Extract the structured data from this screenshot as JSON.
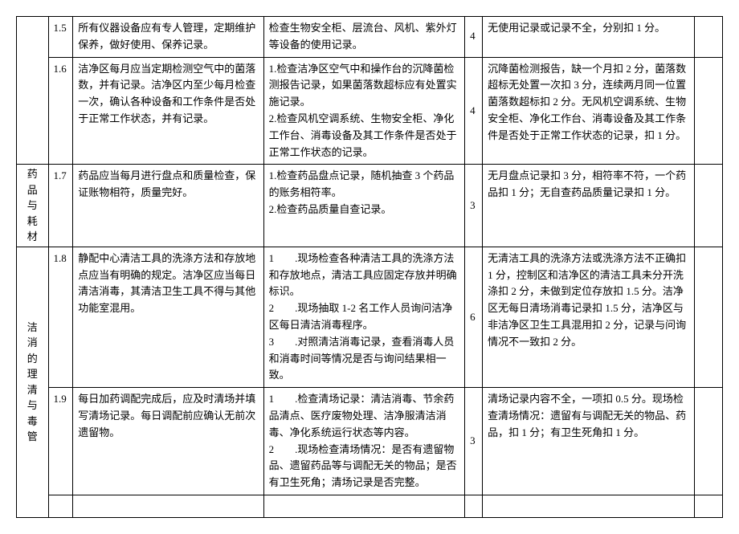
{
  "table": {
    "column_widths": {
      "category": "4.5%",
      "number": "3.5%",
      "requirement": "27%",
      "method": "28.5%",
      "score": "2.5%",
      "criteria": "30%",
      "extra": "4%"
    },
    "border_color": "#000000",
    "background_color": "#ffffff",
    "text_color": "#000000",
    "font_size": 13,
    "rows": [
      {
        "category": "",
        "number": "1.5",
        "requirement": "所有仪器设备应有专人管理，定期维护保养，做好使用、保养记录。",
        "method": "检查生物安全柜、层流台、风机、紫外灯等设备的使用记录。",
        "score": "4",
        "criteria": "无使用记录或记录不全，分别扣 1 分。"
      },
      {
        "category": "",
        "number": "1.6",
        "requirement": "洁净区每月应当定期检测空气中的菌落数，并有记录。洁净区内至少每月检查一次，确认各种设备和工作条件是否处于正常工作状态，并有记录。",
        "method": "1.检查洁净区空气中和操作台的沉降菌检测报告记录，如果菌落数超标应有处置实施记录。\n2.检查风机空调系统、生物安全柜、净化工作台、消毒设备及其工作条件是否处于正常工作状态的记录。",
        "score": "4",
        "criteria": "沉降菌检测报告，缺一个月扣 2 分，菌落数超标无处置一次扣 3 分，连续两月同一位置菌落数超标扣 2 分。无风机空调系统、生物安全柜、净化工作台、消毒设备及其工作条件是否处于正常工作状态的记录，扣 1 分。"
      },
      {
        "category": "药品与耗材",
        "number": "1.7",
        "requirement": "药品应当每月进行盘点和质量检查，保证账物相符，质量完好。",
        "method": "1.检查药品盘点记录，随机抽查 3 个药品的账务相符率。\n2.检查药品质量自查记录。",
        "score": "3",
        "criteria": "无月盘点记录扣 3 分，相符率不符，一个药品扣 1 分；无自查药品质量记录扣 1 分。"
      },
      {
        "category": "洁消的理清与毒管",
        "number": "1.8",
        "requirement": "静配中心清洁工具的洗涤方法和存放地点应当有明确的规定。洁净区应当每日清洁消毒，其清洁卫生工具不得与其他功能室混用。",
        "method": "1　　.现场检查各种清洁工具的洗涤方法和存放地点，清洁工具应固定存放并明确标识。\n2　　.现场抽取 1-2 名工作人员询问洁净区每日清洁消毒程序。\n3　　.对照清洁消毒记录，查看消毒人员和消毒时间等情况是否与询问结果相一致。",
        "score": "6",
        "criteria": "无清洁工具的洗涤方法或洗涤方法不正确扣 1 分，控制区和洁净区的清洁工具未分开洗涤扣 2 分，未做到定位存放扣 1.5 分。洁净区无每日清场消毒记录扣 1.5 分，洁净区与非洁净区卫生工具混用扣 2 分，记录与问询情况不一致扣 2 分。"
      },
      {
        "category": "",
        "number": "1.9",
        "requirement": "每日加药调配完成后，应及时清场并填写清场记录。每日调配前应确认无前次遗留物。",
        "method": "1　　.检查清场记录：清洁消毒、节余药品清点、医疗废物处理、洁净服清洁消毒、净化系统运行状态等内容。\n2　　.现场检查清场情况：是否有遗留物品、遗留药品等与调配无关的物品；是否有卫生死角；清场记录是否完整。",
        "score": "3",
        "criteria": "清场记录内容不全，一项扣 0.5 分。现场检查清场情况：遗留有与调配无关的物品、药品，扣 1 分；有卫生死角扣 1 分。"
      }
    ]
  }
}
